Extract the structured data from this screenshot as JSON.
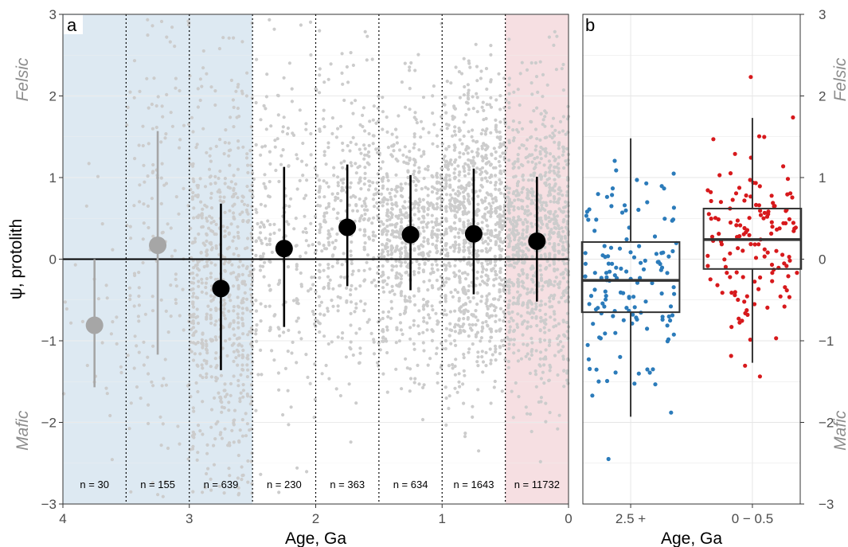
{
  "chart_data": [
    {
      "panel": "a",
      "type": "scatter",
      "xlabel": "Age, Ga",
      "ylabel": "ψ, protolith",
      "xlim": [
        4,
        0
      ],
      "ylim": [
        -3,
        3
      ],
      "x_ticks": [
        "4",
        "3",
        "2",
        "1",
        "0"
      ],
      "y_ticks": [
        "−3",
        "−2",
        "−1",
        "0",
        "1",
        "2",
        "3"
      ],
      "side_labels": {
        "top": "Felsic",
        "bottom": "Mafic"
      },
      "shaded_regions": [
        {
          "from": 4.0,
          "to": 2.5,
          "color": "#dde9f2"
        },
        {
          "from": 0.5,
          "to": 0.0,
          "color": "#f6dfe2"
        }
      ],
      "bin_edges": [
        3.5,
        3.0,
        2.5,
        2.0,
        1.5,
        1.0,
        0.5
      ],
      "bins": [
        {
          "x": 3.75,
          "mean": -0.81,
          "low": -1.57,
          "high": 0.0,
          "n": "n = 30",
          "count": 30,
          "color": "#a6a6a6"
        },
        {
          "x": 3.25,
          "mean": 0.17,
          "low": -1.17,
          "high": 1.57,
          "n": "n = 155",
          "count": 155,
          "color": "#a6a6a6"
        },
        {
          "x": 2.75,
          "mean": -0.36,
          "low": -1.36,
          "high": 0.68,
          "n": "n = 639",
          "count": 639,
          "color": "#000000"
        },
        {
          "x": 2.25,
          "mean": 0.13,
          "low": -0.83,
          "high": 1.13,
          "n": "n = 230",
          "count": 230,
          "color": "#000000"
        },
        {
          "x": 1.75,
          "mean": 0.39,
          "low": -0.33,
          "high": 1.16,
          "n": "n = 363",
          "count": 363,
          "color": "#000000"
        },
        {
          "x": 1.25,
          "mean": 0.3,
          "low": -0.38,
          "high": 1.03,
          "n": "n = 634",
          "count": 634,
          "color": "#000000"
        },
        {
          "x": 0.75,
          "mean": 0.31,
          "low": -0.43,
          "high": 1.11,
          "n": "n = 1643",
          "count": 1643,
          "color": "#000000"
        },
        {
          "x": 0.25,
          "mean": 0.22,
          "low": -0.52,
          "high": 1.01,
          "n": "n = 11732",
          "count": 11732,
          "color": "#000000"
        }
      ]
    },
    {
      "panel": "b",
      "type": "box",
      "xlabel": "Age, Ga",
      "ylim": [
        -3,
        3
      ],
      "y_ticks": [
        "−3",
        "−2",
        "−1",
        "0",
        "1",
        "2",
        "3"
      ],
      "side_labels": {
        "top": "Felsic",
        "bottom": "Mafic"
      },
      "groups": [
        {
          "label": "2.5 +",
          "color": "#2b7bba",
          "whisker_low": -1.93,
          "q1": -0.65,
          "median": -0.26,
          "q3": 0.21,
          "whisker_high": 1.48,
          "n": 140
        },
        {
          "label": "0 − 0.5",
          "color": "#d7191c",
          "whisker_low": -1.27,
          "q1": -0.12,
          "median": 0.24,
          "q3": 0.62,
          "whisker_high": 1.73,
          "n": 140
        }
      ]
    }
  ]
}
